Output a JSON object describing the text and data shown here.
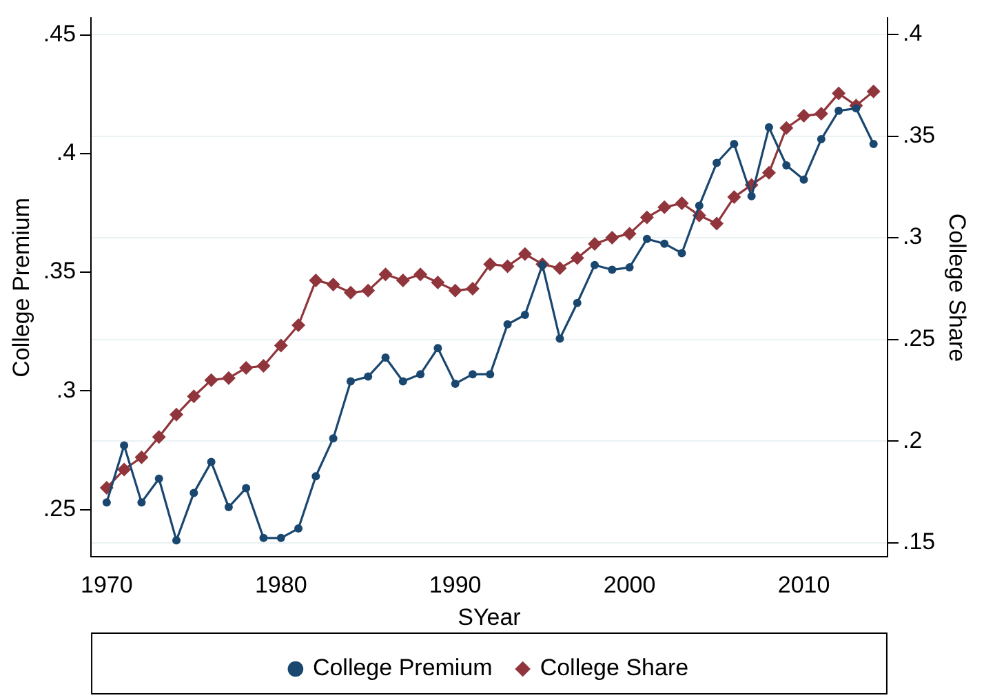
{
  "chart_data": {
    "type": "line",
    "xlabel": "SYear",
    "ylabel": "College Premium",
    "y2label": "College Share",
    "x": [
      1970,
      1971,
      1972,
      1973,
      1974,
      1975,
      1976,
      1977,
      1978,
      1979,
      1980,
      1981,
      1982,
      1983,
      1984,
      1985,
      1986,
      1987,
      1988,
      1989,
      1990,
      1991,
      1992,
      1993,
      1994,
      1995,
      1996,
      1997,
      1998,
      1999,
      2000,
      2001,
      2002,
      2003,
      2004,
      2005,
      2006,
      2007,
      2008,
      2009,
      2010,
      2011,
      2012,
      2013,
      2014
    ],
    "series": [
      {
        "name": "College Premium",
        "color": "#1a476f",
        "marker": "circle",
        "values": [
          0.253,
          0.277,
          0.253,
          0.263,
          0.237,
          0.257,
          0.27,
          0.251,
          0.259,
          0.238,
          0.238,
          0.242,
          0.264,
          0.28,
          0.304,
          0.306,
          0.314,
          0.304,
          0.307,
          0.318,
          0.303,
          0.307,
          0.307,
          0.328,
          0.332,
          0.353,
          0.322,
          0.337,
          0.353,
          0.351,
          0.352,
          0.364,
          0.362,
          0.358,
          0.378,
          0.396,
          0.404,
          0.382,
          0.411,
          0.395,
          0.389,
          0.406,
          0.418,
          0.419,
          0.404
        ]
      },
      {
        "name": "College Share",
        "color": "#90353b",
        "marker": "diamond",
        "axis": "y2",
        "values": [
          0.177,
          0.186,
          0.192,
          0.202,
          0.213,
          0.222,
          0.23,
          0.231,
          0.236,
          0.237,
          0.247,
          0.257,
          0.279,
          0.277,
          0.273,
          0.274,
          0.282,
          0.279,
          0.282,
          0.278,
          0.274,
          0.275,
          0.287,
          0.286,
          0.292,
          0.287,
          0.285,
          0.29,
          0.297,
          0.3,
          0.302,
          0.31,
          0.315,
          0.317,
          0.311,
          0.307,
          0.32,
          0.326,
          0.332,
          0.354,
          0.36,
          0.361,
          0.371,
          0.365,
          0.372
        ]
      }
    ],
    "xlim": [
      1969.1,
      2014.8
    ],
    "xticks": [
      1970,
      1980,
      1990,
      2000,
      2010
    ],
    "ylim": [
      0.23,
      0.457
    ],
    "yticks": [
      {
        "value": 0.25,
        "label": ".25"
      },
      {
        "value": 0.3,
        "label": ".3"
      },
      {
        "value": 0.35,
        "label": ".35"
      },
      {
        "value": 0.4,
        "label": ".4"
      },
      {
        "value": 0.45,
        "label": ".45"
      }
    ],
    "y2lim": [
      0.143,
      0.408
    ],
    "y2ticks": [
      {
        "value": 0.15,
        "label": ".15"
      },
      {
        "value": 0.2,
        "label": ".2"
      },
      {
        "value": 0.25,
        "label": ".25"
      },
      {
        "value": 0.3,
        "label": ".3"
      },
      {
        "value": 0.35,
        "label": ".35"
      },
      {
        "value": 0.4,
        "label": ".4"
      }
    ],
    "grid": "y2",
    "legend": "bottom",
    "line_style": "solid"
  }
}
